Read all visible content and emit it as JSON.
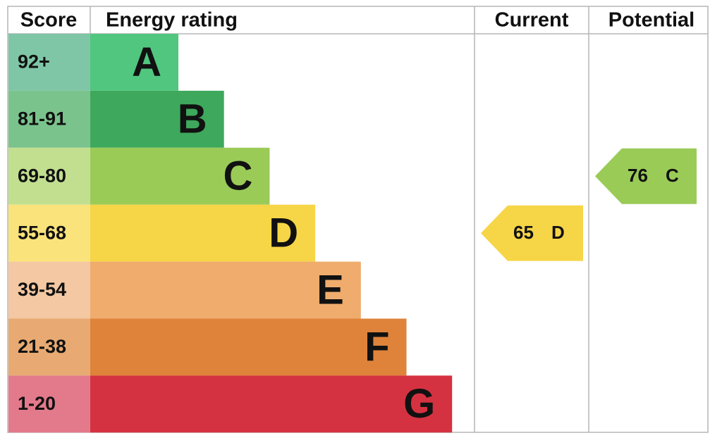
{
  "header": {
    "score": "Score",
    "rating": "Energy rating",
    "current": "Current",
    "potential": "Potential"
  },
  "bands": [
    {
      "score": "92+",
      "letter": "A",
      "color": "#51c67f",
      "score_color": "#7fc6a6"
    },
    {
      "score": "81-91",
      "letter": "B",
      "color": "#3ea85c",
      "score_color": "#7bc38d"
    },
    {
      "score": "69-80",
      "letter": "C",
      "color": "#9acb57",
      "score_color": "#c2df90"
    },
    {
      "score": "55-68",
      "letter": "D",
      "color": "#f6d547",
      "score_color": "#fae37b"
    },
    {
      "score": "39-54",
      "letter": "E",
      "color": "#efac6d",
      "score_color": "#f3c8a2"
    },
    {
      "score": "21-38",
      "letter": "F",
      "color": "#df833a",
      "score_color": "#e8aa72"
    },
    {
      "score": "1-20",
      "letter": "G",
      "color": "#d53241",
      "score_color": "#e37a8b"
    }
  ],
  "current": {
    "value": 65,
    "letter": "D"
  },
  "potential": {
    "value": 76,
    "letter": "C"
  }
}
